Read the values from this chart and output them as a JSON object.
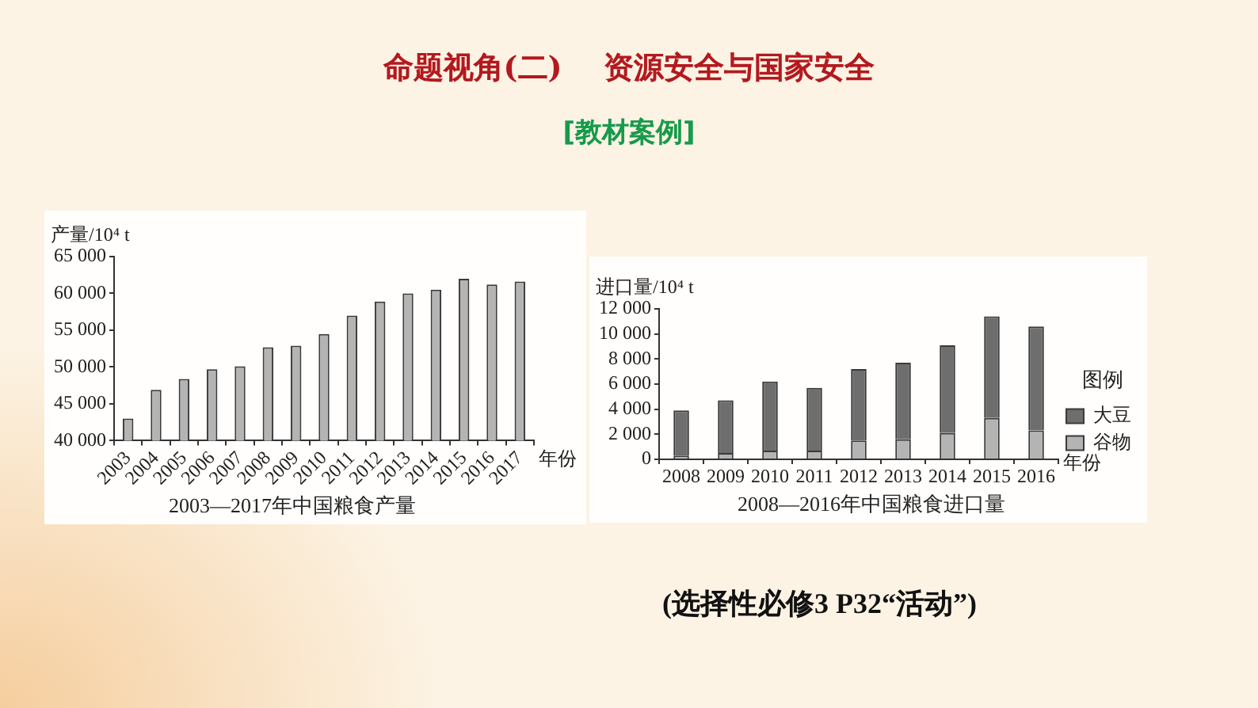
{
  "chart_data": [
    {
      "type": "other",
      "title": "命题视角(二)    资源安全与国家安全",
      "subtitle": "[教材案例]"
    },
    {
      "type": "bar",
      "title": "2003—2017年中国粮食产量",
      "xlabel": "年份",
      "ylabel": "产量/10⁴ t",
      "categories": [
        "2003",
        "2004",
        "2005",
        "2006",
        "2007",
        "2008",
        "2009",
        "2010",
        "2011",
        "2012",
        "2013",
        "2014",
        "2015",
        "2016",
        "2017"
      ],
      "values": [
        43000,
        46900,
        48400,
        49700,
        50100,
        52700,
        52900,
        54500,
        57000,
        58900,
        60000,
        60500,
        62000,
        61200,
        61600
      ],
      "color": "#b4b4b4",
      "ylim": [
        40000,
        65000
      ],
      "yticks": [
        {
          "value": 40000,
          "label": "40 000"
        },
        {
          "value": 45000,
          "label": "45 000"
        },
        {
          "value": 50000,
          "label": "50 000"
        },
        {
          "value": 55000,
          "label": "55 000"
        },
        {
          "value": 60000,
          "label": "60 000"
        },
        {
          "value": 65000,
          "label": "65 000"
        }
      ]
    },
    {
      "type": "bar",
      "title": "2008—2016年中国粮食进口量",
      "xlabel": "年份",
      "ylabel": "进口量/10⁴ t",
      "legend_title": "图例",
      "legend": "right",
      "stacked": true,
      "categories": [
        "2008",
        "2009",
        "2010",
        "2011",
        "2012",
        "2013",
        "2014",
        "2015",
        "2016"
      ],
      "series": [
        {
          "name": "谷物",
          "color": "#b4b4b4",
          "values": [
            300,
            500,
            700,
            700,
            1500,
            1600,
            2100,
            3300,
            2300
          ]
        },
        {
          "name": "大豆",
          "color": "#6e6e6e",
          "values": [
            3600,
            4200,
            5500,
            5000,
            5700,
            6100,
            7000,
            8100,
            8300
          ]
        }
      ],
      "ylim": [
        0,
        12000
      ],
      "yticks": [
        0,
        {
          "value": 2000,
          "label": "2 000"
        },
        {
          "value": 4000,
          "label": "4 000"
        },
        {
          "value": 6000,
          "label": "6 000"
        },
        {
          "value": 8000,
          "label": "8 000"
        },
        {
          "value": 10000,
          "label": "10 000"
        },
        {
          "value": 12000,
          "label": "12 000"
        }
      ]
    },
    {
      "type": "other",
      "annotations": [
        "(选择性必修3 P32“活动”)"
      ]
    }
  ]
}
